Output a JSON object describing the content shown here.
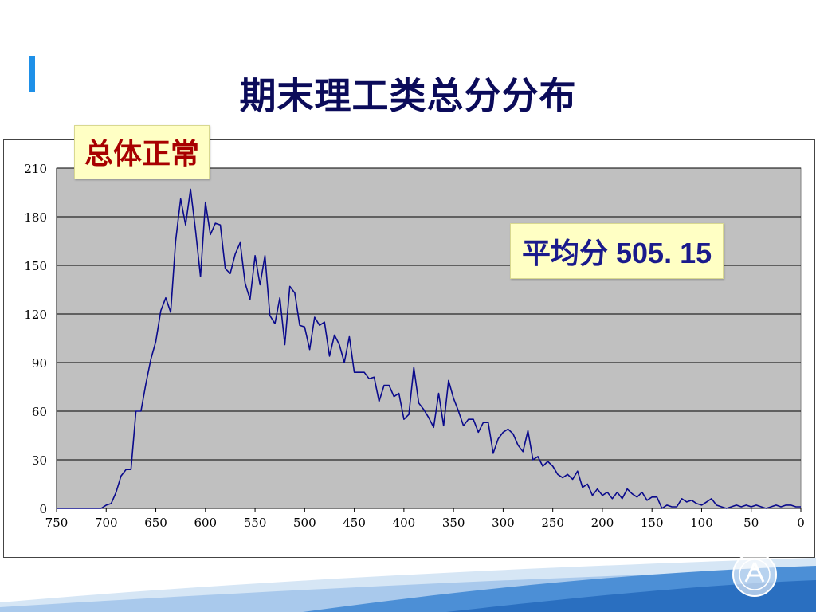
{
  "slide": {
    "title": "期末理工类总分分布",
    "callout_normal": "总体正常",
    "callout_mean": "平均分  505. 15",
    "accent_color": "#1E90E8"
  },
  "chart_data": {
    "type": "line",
    "title": "",
    "xlabel": "",
    "ylabel": "",
    "x_reversed": true,
    "xlim": [
      750,
      0
    ],
    "ylim": [
      0,
      210
    ],
    "y_ticks": [
      0,
      30,
      60,
      90,
      120,
      150,
      180,
      210
    ],
    "x_ticks": [
      750,
      700,
      650,
      600,
      550,
      500,
      450,
      400,
      350,
      300,
      250,
      200,
      150,
      100,
      50,
      0
    ],
    "grid": "horizontal",
    "legend": "none",
    "plot_bg": "#C0C0C0",
    "line_color": "#0A0A8C",
    "series": [
      {
        "x": [
          750,
          745,
          740,
          735,
          730,
          725,
          720,
          715,
          710,
          705,
          700,
          695,
          690,
          685,
          680,
          675,
          670,
          665,
          660,
          655,
          650,
          645,
          640,
          635,
          630,
          625,
          620,
          615,
          610,
          605,
          600,
          595,
          590,
          585,
          580,
          575,
          570,
          565,
          560,
          555,
          550,
          545,
          540,
          535,
          530,
          525,
          520,
          515,
          510,
          505,
          500,
          495,
          490,
          485,
          480,
          475,
          470,
          465,
          460,
          455,
          450,
          445,
          440,
          435,
          430,
          425,
          420,
          415,
          410,
          405,
          400,
          395,
          390,
          385,
          380,
          375,
          370,
          365,
          360,
          355,
          350,
          345,
          340,
          335,
          330,
          325,
          320,
          315,
          310,
          305,
          300,
          295,
          290,
          285,
          280,
          275,
          270,
          265,
          260,
          255,
          250,
          245,
          240,
          235,
          230,
          225,
          220,
          215,
          210,
          205,
          200,
          195,
          190,
          185,
          180,
          175,
          170,
          165,
          160,
          155,
          150,
          145,
          140,
          135,
          130,
          125,
          120,
          115,
          110,
          105,
          100,
          95,
          90,
          85,
          80,
          75,
          70,
          65,
          60,
          55,
          50,
          45,
          40,
          35,
          30,
          25,
          20,
          15,
          10,
          5,
          0
        ],
        "values": [
          0,
          0,
          0,
          0,
          0,
          0,
          0,
          0,
          0,
          0,
          2,
          3,
          10,
          20,
          24,
          24,
          60,
          60,
          77,
          92,
          103,
          122,
          130,
          121,
          165,
          191,
          175,
          197,
          172,
          143,
          189,
          169,
          176,
          175,
          148,
          145,
          157,
          164,
          139,
          129,
          156,
          138,
          156,
          119,
          114,
          130,
          101,
          137,
          133,
          113,
          112,
          98,
          118,
          113,
          115,
          94,
          107,
          101,
          90,
          106,
          84,
          84,
          84,
          80,
          81,
          66,
          76,
          76,
          69,
          71,
          55,
          58,
          87,
          65,
          61,
          56,
          50,
          71,
          51,
          79,
          68,
          60,
          51,
          55,
          55,
          47,
          53,
          53,
          34,
          43,
          47,
          49,
          46,
          39,
          35,
          48,
          30,
          32,
          26,
          29,
          26,
          21,
          19,
          21,
          18,
          23,
          13,
          15,
          8,
          12,
          8,
          10,
          6,
          10,
          6,
          12,
          9,
          7,
          10,
          5,
          7,
          7,
          0,
          2,
          1,
          1,
          6,
          4,
          5,
          3,
          2,
          4,
          6,
          2,
          1,
          0,
          1,
          2,
          1,
          2,
          1,
          2,
          1,
          0,
          1,
          2,
          1,
          2,
          2,
          1,
          1
        ]
      }
    ]
  }
}
